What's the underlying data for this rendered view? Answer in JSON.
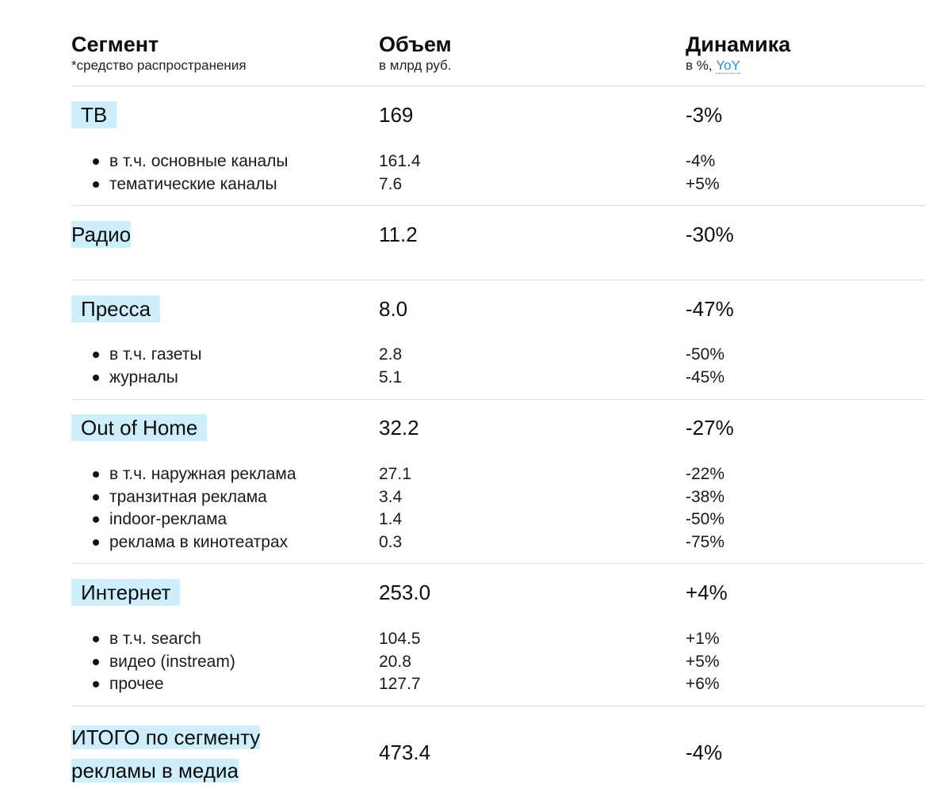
{
  "header": {
    "segment_title": "Сегмент",
    "segment_sub": "*средство распространения",
    "volume_title": "Объем",
    "volume_sub": "в млрд руб.",
    "dynamics_title": "Динамика",
    "dynamics_sub_prefix": "в %,",
    "dynamics_sub_link": "YoY"
  },
  "segments": [
    {
      "name": "ТВ",
      "volume": "169",
      "dynamics": "-3%",
      "items": [
        {
          "label": "в т.ч. основные каналы",
          "volume": "161.4",
          "dynamics": "-4%"
        },
        {
          "label": "тематические каналы",
          "volume": "7.6",
          "dynamics": "+5%"
        }
      ]
    },
    {
      "name": "Радио",
      "volume": "11.2",
      "dynamics": "-30%",
      "items": []
    },
    {
      "name": "Пресса",
      "volume": "8.0",
      "dynamics": "-47%",
      "items": [
        {
          "label": "в т.ч. газеты",
          "volume": "2.8",
          "dynamics": "-50%"
        },
        {
          "label": "журналы",
          "volume": "5.1",
          "dynamics": "-45%"
        }
      ]
    },
    {
      "name": "Out of Home",
      "volume": "32.2",
      "dynamics": "-27%",
      "items": [
        {
          "label": "в т.ч. наружная реклама",
          "volume": "27.1",
          "dynamics": "-22%"
        },
        {
          "label": "транзитная реклама",
          "volume": "3.4",
          "dynamics": "-38%"
        },
        {
          "label": "indoor-реклама",
          "volume": "1.4",
          "dynamics": "-50%"
        },
        {
          "label": "реклама в кинотеатрах",
          "volume": "0.3",
          "dynamics": "-75%"
        }
      ]
    },
    {
      "name": "Интернет",
      "volume": "253.0",
      "dynamics": "+4%",
      "items": [
        {
          "label": "в т.ч. search",
          "volume": "104.5",
          "dynamics": "+1%"
        },
        {
          "label": "видео (instream)",
          "volume": "20.8",
          "dynamics": "+5%"
        },
        {
          "label": "прочее",
          "volume": "127.7",
          "dynamics": "+6%"
        }
      ]
    }
  ],
  "total": {
    "name_line1": "ИТОГО по сегменту",
    "name_line2": "рекламы в медиа",
    "volume": "473.4",
    "dynamics": "-4%"
  },
  "colors": {
    "highlight": "#cdeefa",
    "link": "#2a8fd0",
    "divider": "#dddddd"
  }
}
